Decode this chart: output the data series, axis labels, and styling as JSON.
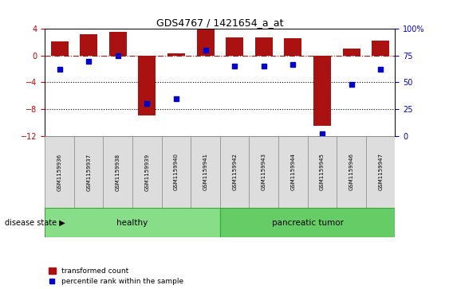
{
  "title": "GDS4767 / 1421654_a_at",
  "samples": [
    "GSM1159936",
    "GSM1159937",
    "GSM1159938",
    "GSM1159939",
    "GSM1159940",
    "GSM1159941",
    "GSM1159942",
    "GSM1159943",
    "GSM1159944",
    "GSM1159945",
    "GSM1159946",
    "GSM1159947"
  ],
  "bar_values": [
    2.1,
    3.2,
    3.5,
    -9.0,
    0.4,
    3.9,
    2.7,
    2.7,
    2.6,
    -10.5,
    1.0,
    2.2
  ],
  "dot_values": [
    62,
    70,
    75,
    30,
    35,
    80,
    65,
    65,
    67,
    2,
    48,
    62
  ],
  "bar_color": "#aa1111",
  "dot_color": "#0000cc",
  "ylim_left": [
    -12,
    4
  ],
  "ylim_right": [
    0,
    100
  ],
  "yticks_left": [
    4,
    0,
    -4,
    -8,
    -12
  ],
  "yticks_right": [
    100,
    75,
    50,
    25,
    0
  ],
  "ytick_labels_right": [
    "100%",
    "75",
    "50",
    "25",
    "0"
  ],
  "dotted_lines": [
    -4,
    -8
  ],
  "groups": [
    {
      "label": "healthy",
      "start": 0,
      "end": 6,
      "color": "#88dd88"
    },
    {
      "label": "pancreatic tumor",
      "start": 6,
      "end": 12,
      "color": "#66cc66"
    }
  ],
  "disease_state_label": "disease state",
  "legend_bar_label": "transformed count",
  "legend_dot_label": "percentile rank within the sample",
  "background_color": "#ffffff",
  "tick_label_color_left": "#cc0000",
  "tick_label_color_right": "#0000cc"
}
